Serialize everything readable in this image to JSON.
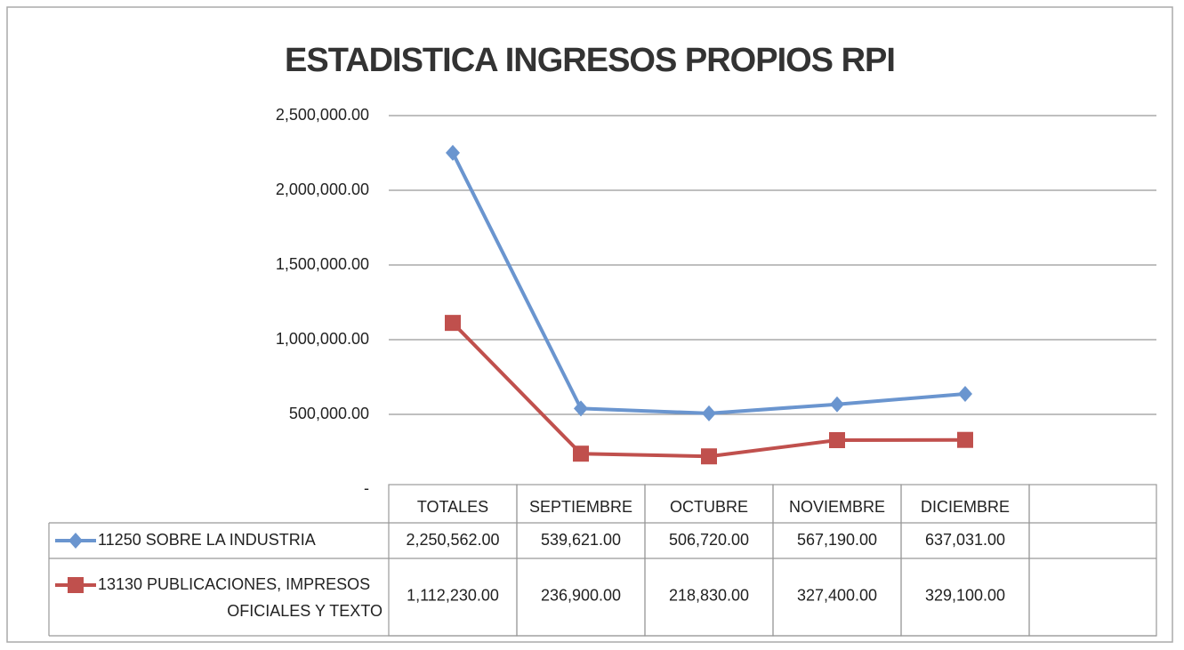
{
  "chart_data": {
    "type": "line",
    "title": "ESTADISTICA INGRESOS PROPIOS RPI",
    "categories": [
      "TOTALES",
      "SEPTIEMBRE",
      "OCTUBRE",
      "NOVIEMBRE",
      "DICIEMBRE"
    ],
    "series": [
      {
        "name": "11250 SOBRE LA INDUSTRIA",
        "color": "#6a95cf",
        "marker": "diamond",
        "values": [
          2250562,
          539621,
          506720,
          567190,
          637031
        ],
        "value_labels": [
          "2,250,562.00",
          "539,621.00",
          "506,720.00",
          "567,190.00",
          "637,031.00"
        ]
      },
      {
        "name": "13130 PUBLICACIONES, IMPRESOS OFICIALES Y TEXTO",
        "color": "#c0504d",
        "marker": "square",
        "values": [
          1112230,
          236900,
          218830,
          327400,
          329100
        ],
        "value_labels": [
          "1,112,230.00",
          "236,900.00",
          "218,830.00",
          "327,400.00",
          "329,100.00"
        ]
      }
    ],
    "ylim": [
      0,
      2500000
    ],
    "yticks": [
      {
        "value": 0,
        "label": "-"
      },
      {
        "value": 500000,
        "label": "500,000.00"
      },
      {
        "value": 1000000,
        "label": "1,000,000.00"
      },
      {
        "value": 1500000,
        "label": "1,500,000.00"
      },
      {
        "value": 2000000,
        "label": "2,000,000.00"
      },
      {
        "value": 2500000,
        "label": "2,500,000.00"
      }
    ],
    "grid": true
  }
}
